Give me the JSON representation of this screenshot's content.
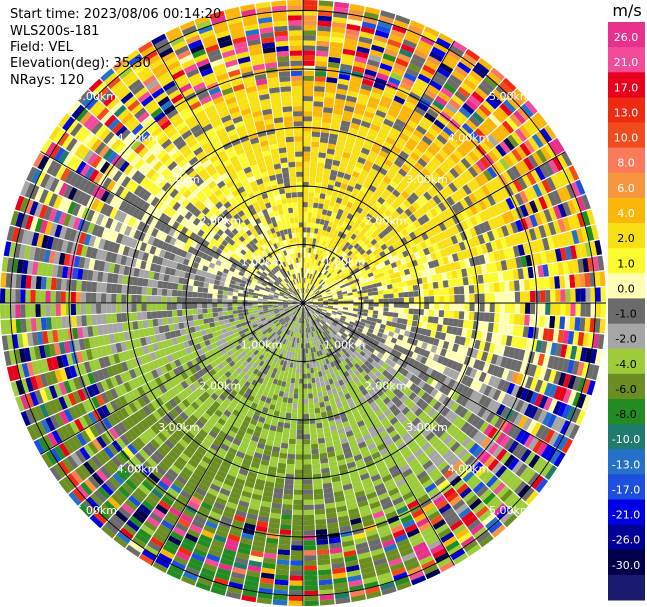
{
  "header": {
    "start_time": "Start time: 2023/08/06 00:14:20",
    "instrument": "WLS200s-181",
    "field": "Field: VEL",
    "elevation": "Elevation(deg): 35.30",
    "nrays": "NRays: 120"
  },
  "chart_data": {
    "type": "heatmap",
    "projection": "polar-ppi",
    "field": "VEL",
    "units": "m/s",
    "rays": 120,
    "range_rings_km": [
      "1.00km",
      "2.00km",
      "3.00km",
      "4.00km",
      "5.00km"
    ],
    "max_range_km": 5.15,
    "colorbar": {
      "title": "m/s",
      "ticks": [
        "26.0",
        "21.0",
        "17.0",
        "13.0",
        "10.0",
        "8.0",
        "6.0",
        "4.0",
        "2.0",
        "1.0",
        "0.0",
        "-1.0",
        "-2.0",
        "-4.0",
        "-6.0",
        "-8.0",
        "-10.0",
        "-13.0",
        "-17.0",
        "-21.0",
        "-26.0",
        "-30.0"
      ],
      "colors": [
        "#e8308c",
        "#f34a9a",
        "#e8001c",
        "#f02a10",
        "#f24c1c",
        "#fb7a5a",
        "#f7963e",
        "#fbb60a",
        "#f9e014",
        "#fbfb30",
        "#ffffb4",
        "#6b6b6b",
        "#a6a6a6",
        "#9ccc3a",
        "#6b8e23",
        "#228b22",
        "#1e7b6e",
        "#2471c7",
        "#1c4fe0",
        "#0000e6",
        "#000096",
        "#00004b",
        "#1a1a6e"
      ]
    }
  }
}
